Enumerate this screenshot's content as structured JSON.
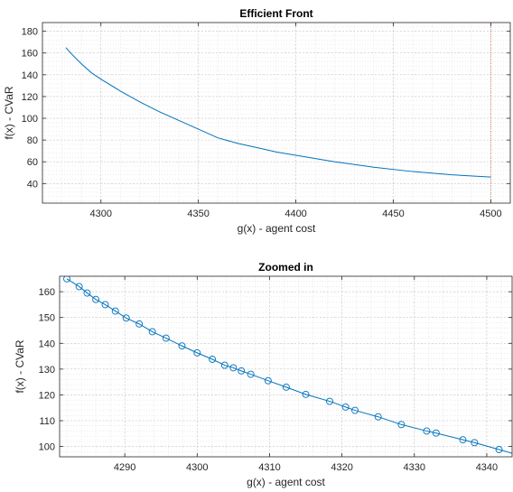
{
  "chart_data": [
    {
      "type": "line",
      "title": "Efficient Front",
      "xlabel": "g(x) - agent cost",
      "ylabel": "f(x) - CVaR",
      "xlim": [
        4270,
        4510
      ],
      "ylim": [
        22,
        188
      ],
      "xticks": [
        4300,
        4350,
        4400,
        4450,
        4500
      ],
      "yticks": [
        40,
        60,
        80,
        100,
        120,
        140,
        160,
        180
      ],
      "grid": true,
      "minor_grid": true,
      "series": [
        {
          "color": "#0072BD",
          "marker": "none",
          "x": [
            4282,
            4285,
            4290,
            4295,
            4300,
            4310,
            4320,
            4330,
            4340,
            4350,
            4360,
            4370,
            4380,
            4390,
            4400,
            4420,
            4440,
            4460,
            4480,
            4500
          ],
          "y": [
            165,
            159,
            150,
            142,
            136,
            125,
            115,
            106,
            98,
            90,
            82,
            77,
            73,
            69,
            66,
            60,
            55,
            51,
            48,
            46
          ]
        }
      ],
      "vline": {
        "x": 4500,
        "color": "#D95319",
        "style": "dotted"
      }
    },
    {
      "type": "line",
      "title": "Zoomed in",
      "xlabel": "g(x) - agent cost",
      "ylabel": "f(x) - CVaR",
      "xlim": [
        4281,
        4343.5
      ],
      "ylim": [
        96,
        166
      ],
      "xticks": [
        4290,
        4300,
        4310,
        4320,
        4330,
        4340
      ],
      "yticks": [
        100,
        110,
        120,
        130,
        140,
        150,
        160
      ],
      "grid": true,
      "minor_grid": true,
      "series": [
        {
          "color": "#0072BD",
          "marker": "circle",
          "x": [
            4282,
            4283.7,
            4284.8,
            4286,
            4287.3,
            4288.7,
            4290.2,
            4292,
            4293.8,
            4295.7,
            4297.9,
            4300,
            4302.1,
            4303.8,
            4305,
            4306.1,
            4307.4,
            4309.8,
            4312.3,
            4315,
            4318.3,
            4320.5,
            4321.8,
            4325,
            4328.2,
            4331.7,
            4333,
            4336.7,
            4338.3,
            4341.7
          ],
          "y": [
            165,
            162,
            159.5,
            157,
            155,
            152.5,
            149.8,
            147.5,
            144.5,
            142,
            139,
            136.3,
            133.8,
            131.5,
            130.5,
            129.3,
            128,
            125.5,
            123,
            120.2,
            117.5,
            115.3,
            114,
            111.5,
            108.5,
            106,
            105.2,
            102.6,
            101.5,
            98.8
          ]
        }
      ]
    }
  ]
}
